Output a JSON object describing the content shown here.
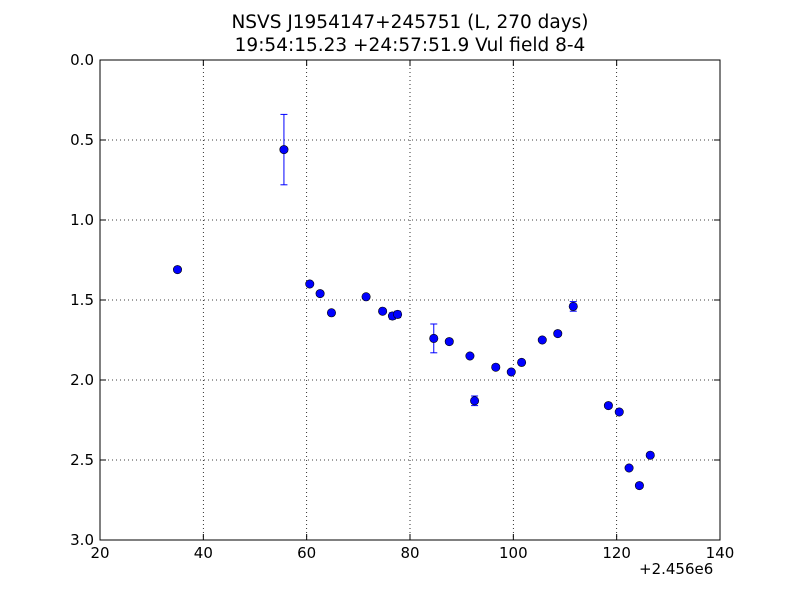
{
  "chart_data": {
    "type": "scatter",
    "title_line1": "NSVS J1954147+245751 (L, 270 days)",
    "title_line2": "19:54:15.23 +24:57:51.9 Vul field 8-4",
    "xlabel": "",
    "ylabel": "",
    "x_offset_label": "+2.456e6",
    "xlim": [
      20,
      140
    ],
    "ylim": [
      3.0,
      0.0
    ],
    "y_inverted": true,
    "grid": true,
    "x_ticks": [
      "20",
      "40",
      "60",
      "80",
      "100",
      "120",
      "140"
    ],
    "y_ticks": [
      "0.0",
      "0.5",
      "1.0",
      "1.5",
      "2.0",
      "2.5",
      "3.0"
    ],
    "marker_color": "#0000ff",
    "points": [
      {
        "x": 35.0,
        "y": 1.31,
        "err": 0.0
      },
      {
        "x": 55.6,
        "y": 0.56,
        "err": 0.22
      },
      {
        "x": 60.6,
        "y": 1.4,
        "err": 0.0
      },
      {
        "x": 62.6,
        "y": 1.46,
        "err": 0.0
      },
      {
        "x": 64.8,
        "y": 1.58,
        "err": 0.0
      },
      {
        "x": 71.5,
        "y": 1.48,
        "err": 0.0
      },
      {
        "x": 74.7,
        "y": 1.57,
        "err": 0.0
      },
      {
        "x": 76.6,
        "y": 1.6,
        "err": 0.02
      },
      {
        "x": 77.6,
        "y": 1.59,
        "err": 0.02
      },
      {
        "x": 84.6,
        "y": 1.74,
        "err": 0.09
      },
      {
        "x": 87.6,
        "y": 1.76,
        "err": 0.0
      },
      {
        "x": 91.6,
        "y": 1.85,
        "err": 0.0
      },
      {
        "x": 92.5,
        "y": 2.13,
        "err": 0.03
      },
      {
        "x": 96.6,
        "y": 1.92,
        "err": 0.0
      },
      {
        "x": 99.6,
        "y": 1.95,
        "err": 0.0
      },
      {
        "x": 101.6,
        "y": 1.89,
        "err": 0.0
      },
      {
        "x": 105.6,
        "y": 1.75,
        "err": 0.0
      },
      {
        "x": 108.6,
        "y": 1.71,
        "err": 0.0
      },
      {
        "x": 111.6,
        "y": 1.54,
        "err": 0.03
      },
      {
        "x": 118.4,
        "y": 2.16,
        "err": 0.0
      },
      {
        "x": 120.5,
        "y": 2.2,
        "err": 0.0
      },
      {
        "x": 122.4,
        "y": 2.55,
        "err": 0.0
      },
      {
        "x": 124.4,
        "y": 2.66,
        "err": 0.0
      },
      {
        "x": 126.5,
        "y": 2.47,
        "err": 0.0
      }
    ]
  }
}
